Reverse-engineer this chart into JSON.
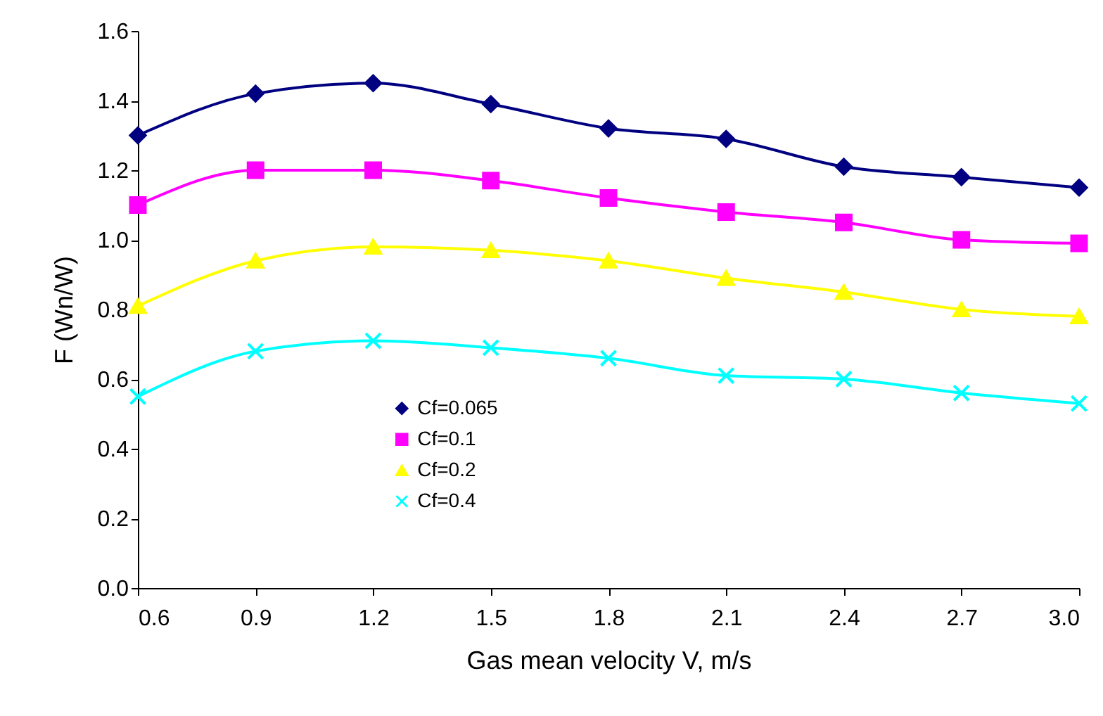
{
  "chart_data": {
    "type": "line",
    "xlabel": "Gas mean velocity V, m/s",
    "ylabel": "F (Wn/W)",
    "x": [
      0.6,
      0.9,
      1.2,
      1.5,
      1.8,
      2.1,
      2.4,
      2.7,
      3.0
    ],
    "xlim": [
      0.6,
      3.0
    ],
    "xticks": [
      0.6,
      0.9,
      1.2,
      1.5,
      1.8,
      2.1,
      2.4,
      2.7,
      {
        "value": 3,
        "label": "3.0"
      }
    ],
    "ylim": [
      0,
      1.6
    ],
    "yticks": [
      {
        "value": 0,
        "label": "0.0"
      },
      0.2,
      0.4,
      0.6,
      0.8,
      {
        "value": 1,
        "label": "1.0"
      },
      1.2,
      1.4,
      1.6
    ],
    "grid": false,
    "legend": "bottom left",
    "series": [
      {
        "name": "Cf=0.065",
        "color": "#000080",
        "marker": "diamond",
        "values": [
          1.3,
          1.42,
          1.45,
          1.39,
          1.32,
          1.29,
          1.21,
          1.18,
          1.15
        ]
      },
      {
        "name": "Cf=0.1",
        "color": "#ff00ff",
        "marker": "square",
        "values": [
          1.1,
          1.2,
          1.2,
          1.17,
          1.12,
          1.08,
          1.05,
          1.0,
          0.99
        ]
      },
      {
        "name": "Cf=0.2",
        "color": "#ffff00",
        "marker": "triangle",
        "values": [
          0.81,
          0.94,
          0.98,
          0.97,
          0.94,
          0.89,
          0.85,
          0.8,
          0.78
        ]
      },
      {
        "name": "Cf=0.4",
        "color": "#00ffff",
        "marker": "cross",
        "values": [
          0.55,
          0.68,
          0.71,
          0.69,
          0.66,
          0.61,
          0.6,
          0.56,
          0.53
        ]
      }
    ]
  }
}
